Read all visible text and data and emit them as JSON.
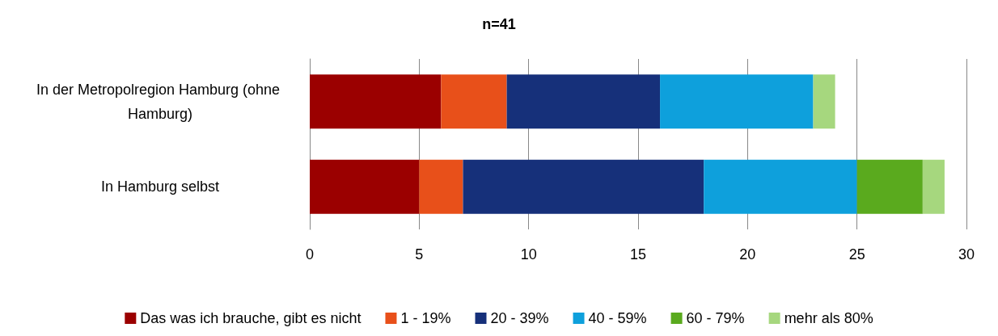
{
  "chart_data": {
    "type": "bar",
    "title": "n=41",
    "orientation": "horizontal",
    "stacked": true,
    "categories": [
      "In der Metropolregion Hamburg (ohne Hamburg)",
      "In Hamburg selbst"
    ],
    "series": [
      {
        "name": "Das was ich brauche, gibt es nicht",
        "color": "#9b0000",
        "values": [
          6,
          5
        ]
      },
      {
        "name": "1 - 19%",
        "color": "#e8501a",
        "values": [
          3,
          2
        ]
      },
      {
        "name": "20 - 39%",
        "color": "#16307a",
        "values": [
          7,
          11
        ]
      },
      {
        "name": "40 - 59%",
        "color": "#0ea0dc",
        "values": [
          7,
          7
        ]
      },
      {
        "name": "60 - 79%",
        "color": "#5aaa1e",
        "values": [
          0,
          3
        ]
      },
      {
        "name": "mehr als 80%",
        "color": "#a6d77e",
        "values": [
          1,
          1
        ]
      }
    ],
    "xlim": [
      0,
      30
    ],
    "xticks": [
      0,
      5,
      10,
      15,
      20,
      25,
      30
    ],
    "grid": "x",
    "legend": "bottom"
  }
}
